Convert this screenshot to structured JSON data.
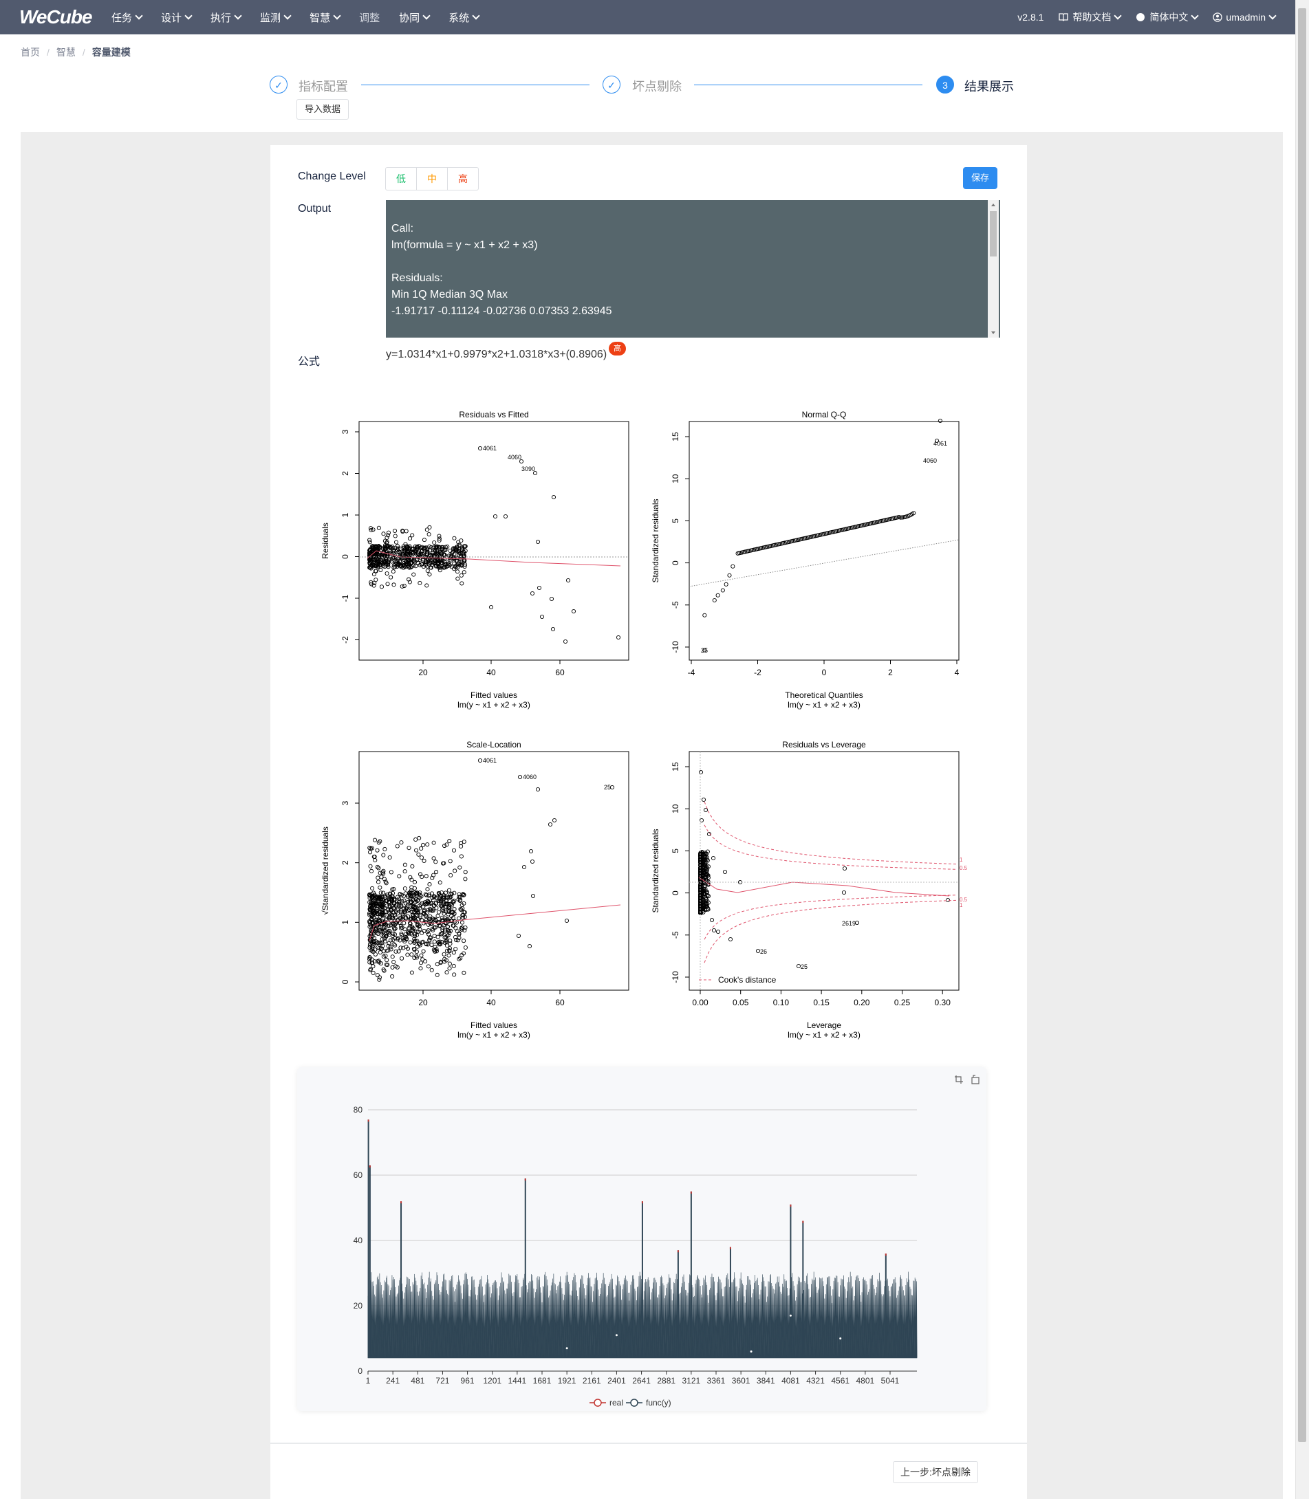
{
  "header": {
    "logo": "WeCube",
    "nav": [
      {
        "label": "任务",
        "dropdown": true
      },
      {
        "label": "设计",
        "dropdown": true
      },
      {
        "label": "执行",
        "dropdown": true
      },
      {
        "label": "监测",
        "dropdown": true
      },
      {
        "label": "智慧",
        "dropdown": true
      },
      {
        "label": "调整",
        "dropdown": false
      },
      {
        "label": "协同",
        "dropdown": true
      },
      {
        "label": "系统",
        "dropdown": true
      }
    ],
    "version": "v2.8.1",
    "help": "帮助文档",
    "language": "简体中文",
    "user": "umadmin"
  },
  "breadcrumb": [
    "首页",
    "智慧",
    "容量建模"
  ],
  "steps": [
    {
      "label": "指标配置",
      "status": "done",
      "icon": "check-icon"
    },
    {
      "label": "坏点剔除",
      "status": "done",
      "icon": "check-icon"
    },
    {
      "label": "结果展示",
      "status": "active",
      "number": "3"
    }
  ],
  "import_button": "导入数据",
  "change_level": {
    "label": "Change Level",
    "options": [
      {
        "label": "低",
        "color": "#19be6b"
      },
      {
        "label": "中",
        "color": "#ff9900"
      },
      {
        "label": "高",
        "color": "#ed4014"
      }
    ]
  },
  "save_button": "保存",
  "output": {
    "label": "Output",
    "lines": [
      "Call:",
      "lm(formula = y ~ x1 + x2 + x3)",
      "",
      "Residuals:",
      "Min 1Q Median 3Q Max",
      "-1.91717 -0.11124 -0.02736 0.07353 2.63945"
    ]
  },
  "formula": {
    "label": "公式",
    "text": "y=1.0314*x1+0.9979*x2+1.0318*x3+(0.8906)",
    "badge": "高"
  },
  "diagnostic_plots": [
    {
      "title": "Residuals vs Fitted",
      "xlabel": "Fitted values",
      "sub": "lm(y ~ x1 + x2 + x3)",
      "ylabel": "Residuals",
      "xticks": [
        "20",
        "40",
        "60"
      ],
      "yticks": [
        "3",
        "2",
        "1",
        "0",
        "-1",
        "-2"
      ],
      "labels": [
        "4061",
        "4060",
        "3090"
      ]
    },
    {
      "title": "Normal Q-Q",
      "xlabel": "Theoretical Quantiles",
      "sub": "lm(y ~ x1 + x2 + x3)",
      "ylabel": "Standardized residuals",
      "xticks": [
        "-4",
        "-2",
        "0",
        "2",
        "4"
      ],
      "yticks": [
        "15",
        "10",
        "5",
        "0",
        "-5",
        "-10"
      ],
      "labels": [
        "4061",
        "4060",
        "25"
      ]
    },
    {
      "title": "Scale-Location",
      "xlabel": "Fitted values",
      "sub": "lm(y ~ x1 + x2 + x3)",
      "ylabel": "√Standardized residuals",
      "xticks": [
        "20",
        "40",
        "60"
      ],
      "yticks": [
        "3",
        "2",
        "1",
        "0"
      ],
      "labels": [
        "4061",
        "4060",
        "25"
      ]
    },
    {
      "title": "Residuals vs Leverage",
      "xlabel": "Leverage",
      "sub": "lm(y ~ x1 + x2 + x3)",
      "ylabel": "Standardized residuals",
      "xticks": [
        "0.00",
        "0.05",
        "0.10",
        "0.15",
        "0.20",
        "0.25",
        "0.30"
      ],
      "yticks": [
        "15",
        "10",
        "5",
        "0",
        "-5",
        "-10"
      ],
      "labels": [
        "2619",
        "26",
        "25"
      ],
      "legend": "Cook's distance",
      "contours": [
        "1",
        "0.5",
        "0.5",
        "1"
      ]
    }
  ],
  "chart_data": {
    "type": "line",
    "title": "",
    "x_tick_labels": [
      "1",
      "241",
      "481",
      "721",
      "961",
      "1201",
      "1441",
      "1681",
      "1921",
      "2161",
      "2401",
      "2641",
      "2881",
      "3121",
      "3361",
      "3601",
      "3841",
      "4081",
      "4321",
      "4561",
      "4801",
      "5041"
    ],
    "x_range": [
      1,
      5300
    ],
    "ylim": [
      0,
      80
    ],
    "yticks": [
      0,
      20,
      40,
      60,
      80
    ],
    "grid": true,
    "legend_position": "bottom",
    "series": [
      {
        "name": "real",
        "color": "#c23531"
      },
      {
        "name": "func(y)",
        "color": "#2f4554"
      }
    ],
    "peaks": [
      {
        "x": 5,
        "y": 77
      },
      {
        "x": 20,
        "y": 63
      },
      {
        "x": 320,
        "y": 52
      },
      {
        "x": 1520,
        "y": 59
      },
      {
        "x": 2650,
        "y": 52
      },
      {
        "x": 3121,
        "y": 55
      },
      {
        "x": 2995,
        "y": 37
      },
      {
        "x": 3500,
        "y": 38
      },
      {
        "x": 4081,
        "y": 51
      },
      {
        "x": 4200,
        "y": 46
      },
      {
        "x": 5000,
        "y": 36
      }
    ],
    "band": {
      "low": 4,
      "high": 29
    }
  }
}
